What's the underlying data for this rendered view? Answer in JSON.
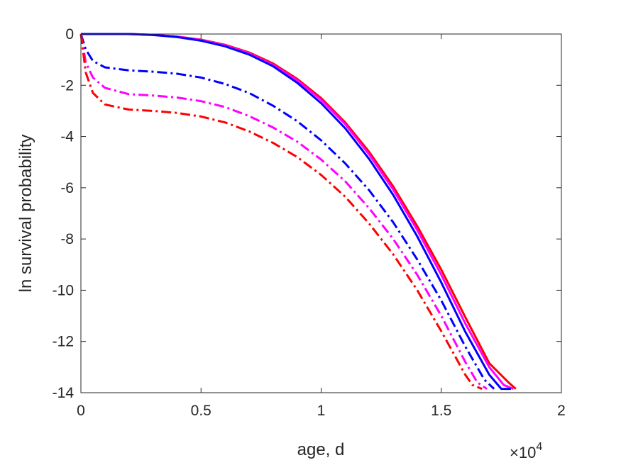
{
  "chart_data": {
    "type": "line",
    "xlabel": "age, d",
    "ylabel": "ln survival probability",
    "x_exponent_label": {
      "base": "×10",
      "power": "4"
    },
    "xlim": [
      0,
      20000
    ],
    "ylim": [
      -14,
      0
    ],
    "xticks": [
      0,
      5000,
      10000,
      15000,
      20000
    ],
    "xtick_labels": [
      "0",
      "0.5",
      "1",
      "1.5",
      "2"
    ],
    "yticks": [
      0,
      -2,
      -4,
      -6,
      -8,
      -10,
      -12,
      -14
    ],
    "ytick_labels": [
      "0",
      "-2",
      "-4",
      "-6",
      "-8",
      "-10",
      "-12",
      "-14"
    ],
    "grid": false,
    "legend": "none",
    "series": [
      {
        "color": "#ff0000",
        "style": "solid",
        "x": [
          0,
          1000,
          2000,
          3000,
          4000,
          5000,
          6000,
          7000,
          8000,
          9000,
          10000,
          11000,
          12000,
          13000,
          14000,
          15000,
          16000,
          17000,
          17800,
          18100
        ],
        "y": [
          0,
          0,
          0,
          -0.03,
          -0.1,
          -0.22,
          -0.42,
          -0.72,
          -1.15,
          -1.75,
          -2.5,
          -3.45,
          -4.6,
          -5.95,
          -7.5,
          -9.2,
          -11.05,
          -12.85,
          -13.6,
          -13.85
        ]
      },
      {
        "color": "#ff00ff",
        "style": "solid",
        "x": [
          0,
          1000,
          2000,
          3000,
          4000,
          5000,
          6000,
          7000,
          8000,
          9000,
          10000,
          11000,
          12000,
          13000,
          14000,
          15000,
          16000,
          17000,
          17600,
          18000
        ],
        "y": [
          0,
          0,
          0,
          -0.03,
          -0.1,
          -0.23,
          -0.44,
          -0.75,
          -1.2,
          -1.8,
          -2.57,
          -3.52,
          -4.7,
          -6.07,
          -7.65,
          -9.4,
          -11.3,
          -13.0,
          -13.7,
          -13.85
        ]
      },
      {
        "color": "#0000ff",
        "style": "solid",
        "x": [
          0,
          1000,
          2000,
          3000,
          4000,
          5000,
          6000,
          7000,
          8000,
          9000,
          10000,
          11000,
          12000,
          13000,
          14000,
          15000,
          16000,
          17000,
          17500,
          17900
        ],
        "y": [
          0,
          0,
          0,
          -0.04,
          -0.12,
          -0.26,
          -0.48,
          -0.8,
          -1.26,
          -1.9,
          -2.7,
          -3.68,
          -4.88,
          -6.28,
          -7.9,
          -9.7,
          -11.62,
          -13.3,
          -13.85,
          -13.85
        ]
      },
      {
        "color": "#0000ff",
        "style": "dashdot",
        "x": [
          0,
          200,
          500,
          1000,
          2000,
          3000,
          4000,
          5000,
          6000,
          7000,
          8000,
          9000,
          10000,
          11000,
          12000,
          13000,
          14000,
          15000,
          16000,
          16800,
          17200
        ],
        "y": [
          0,
          -0.6,
          -1.05,
          -1.3,
          -1.42,
          -1.47,
          -1.55,
          -1.7,
          -1.95,
          -2.3,
          -2.8,
          -3.4,
          -4.15,
          -5.05,
          -6.1,
          -7.35,
          -8.8,
          -10.4,
          -12.2,
          -13.5,
          -13.85
        ]
      },
      {
        "color": "#ff00ff",
        "style": "dashdot",
        "x": [
          0,
          200,
          500,
          1000,
          2000,
          3000,
          4000,
          5000,
          6000,
          7000,
          8000,
          9000,
          10000,
          11000,
          12000,
          13000,
          14000,
          15000,
          16000,
          16500,
          16900
        ],
        "y": [
          0,
          -1.1,
          -1.7,
          -2.1,
          -2.35,
          -2.4,
          -2.48,
          -2.62,
          -2.85,
          -3.2,
          -3.65,
          -4.2,
          -4.9,
          -5.75,
          -6.8,
          -8.0,
          -9.4,
          -11.0,
          -12.8,
          -13.6,
          -13.85
        ]
      },
      {
        "color": "#ff0000",
        "style": "dashdot",
        "x": [
          0,
          200,
          500,
          1000,
          2000,
          3000,
          4000,
          5000,
          6000,
          7000,
          8000,
          9000,
          10000,
          11000,
          12000,
          13000,
          14000,
          15000,
          16000,
          16300,
          16700
        ],
        "y": [
          0,
          -1.5,
          -2.3,
          -2.75,
          -2.95,
          -3.0,
          -3.08,
          -3.22,
          -3.45,
          -3.8,
          -4.25,
          -4.8,
          -5.5,
          -6.35,
          -7.4,
          -8.6,
          -10.0,
          -11.6,
          -13.3,
          -13.7,
          -13.85
        ]
      }
    ]
  }
}
